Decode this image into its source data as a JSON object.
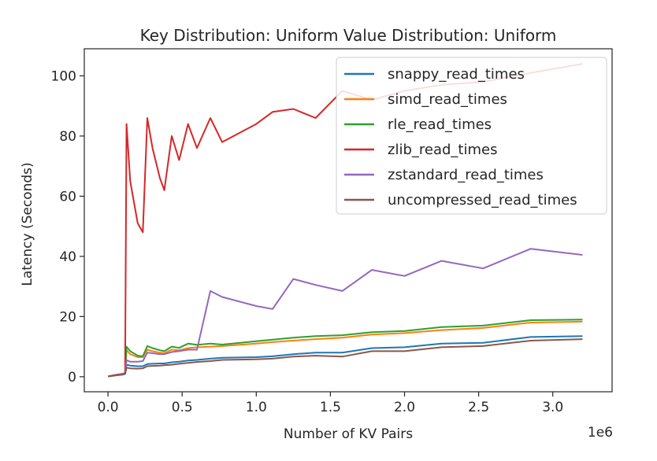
{
  "chart_data": {
    "type": "line",
    "title": "Key Distribution: Uniform Value Distribution: Uniform",
    "xlabel": "Number of KV Pairs",
    "ylabel": "Latency (Seconds)",
    "x_offset_label": "1e6",
    "xlim": [
      -0.16,
      3.4
    ],
    "ylim": [
      -5,
      109
    ],
    "xticks": [
      0.0,
      0.5,
      1.0,
      1.5,
      2.0,
      2.5,
      3.0
    ],
    "xtick_labels": [
      "0.0",
      "0.5",
      "1.0",
      "1.5",
      "2.0",
      "2.5",
      "3.0"
    ],
    "yticks": [
      0,
      20,
      40,
      60,
      80,
      100
    ],
    "ytick_labels": [
      "0",
      "20",
      "40",
      "60",
      "80",
      "100"
    ],
    "grid": false,
    "legend_position": "top-right",
    "x": [
      0.001,
      0.05,
      0.1,
      0.115,
      0.125,
      0.15,
      0.2,
      0.235,
      0.265,
      0.3,
      0.35,
      0.38,
      0.43,
      0.48,
      0.54,
      0.6,
      0.69,
      0.77,
      1.0,
      1.11,
      1.25,
      1.4,
      1.58,
      1.78,
      2.0,
      2.25,
      2.53,
      2.85,
      3.2
    ],
    "series": [
      {
        "name": "snappy_read_times",
        "color": "#1f77b4",
        "values": [
          0.1,
          0.5,
          0.9,
          1.0,
          4.0,
          3.7,
          3.5,
          3.5,
          4.2,
          4.3,
          4.4,
          4.4,
          4.8,
          5.0,
          5.4,
          5.6,
          6.0,
          6.3,
          6.5,
          6.8,
          7.5,
          8.0,
          8.0,
          9.5,
          9.8,
          11.0,
          11.3,
          13.2,
          13.5
        ]
      },
      {
        "name": "simd_read_times",
        "color": "#ff7f0e",
        "values": [
          0.1,
          0.6,
          0.9,
          1.1,
          8.8,
          7.5,
          6.5,
          6.5,
          9.0,
          8.5,
          8.0,
          7.8,
          9.0,
          8.8,
          9.5,
          9.8,
          10.0,
          10.2,
          11.0,
          11.5,
          12.0,
          12.5,
          13.0,
          14.0,
          14.5,
          15.5,
          16.2,
          18.0,
          18.3
        ]
      },
      {
        "name": "rle_read_times",
        "color": "#2ca02c",
        "values": [
          0.1,
          0.6,
          1.0,
          1.2,
          10.0,
          8.5,
          7.0,
          6.8,
          10.2,
          9.5,
          8.8,
          8.5,
          10.0,
          9.6,
          11.0,
          10.6,
          11.0,
          10.7,
          11.8,
          12.3,
          13.0,
          13.5,
          13.8,
          14.8,
          15.2,
          16.5,
          17.0,
          18.8,
          19.0
        ]
      },
      {
        "name": "zlib_read_times",
        "color": "#d62728",
        "values": [
          0.1,
          0.6,
          1.0,
          1.2,
          84.0,
          65.0,
          51.0,
          48.0,
          86.0,
          76.0,
          66.0,
          62.0,
          80.0,
          72.0,
          84.0,
          76.0,
          86.0,
          78.0,
          84.0,
          88.0,
          89.0,
          86.0,
          95.0,
          92.0,
          95.0,
          97.0,
          98.0,
          101.0,
          104.0
        ]
      },
      {
        "name": "zstandard_read_times",
        "color": "#9467bd",
        "values": [
          0.1,
          0.5,
          0.9,
          1.0,
          5.5,
          5.0,
          5.0,
          5.2,
          8.0,
          7.8,
          7.5,
          7.5,
          8.2,
          8.5,
          9.0,
          9.0,
          28.5,
          26.5,
          23.5,
          22.5,
          32.5,
          30.5,
          28.5,
          35.5,
          33.5,
          38.5,
          36.0,
          42.5,
          40.5
        ]
      },
      {
        "name": "uncompressed_read_times",
        "color": "#8c564b",
        "values": [
          0.1,
          0.4,
          0.7,
          0.9,
          3.0,
          2.8,
          2.7,
          2.8,
          3.5,
          3.6,
          3.7,
          3.8,
          4.0,
          4.3,
          4.6,
          4.9,
          5.2,
          5.6,
          5.8,
          6.0,
          6.7,
          7.0,
          6.7,
          8.5,
          8.5,
          9.8,
          10.2,
          12.0,
          12.5
        ]
      }
    ]
  }
}
